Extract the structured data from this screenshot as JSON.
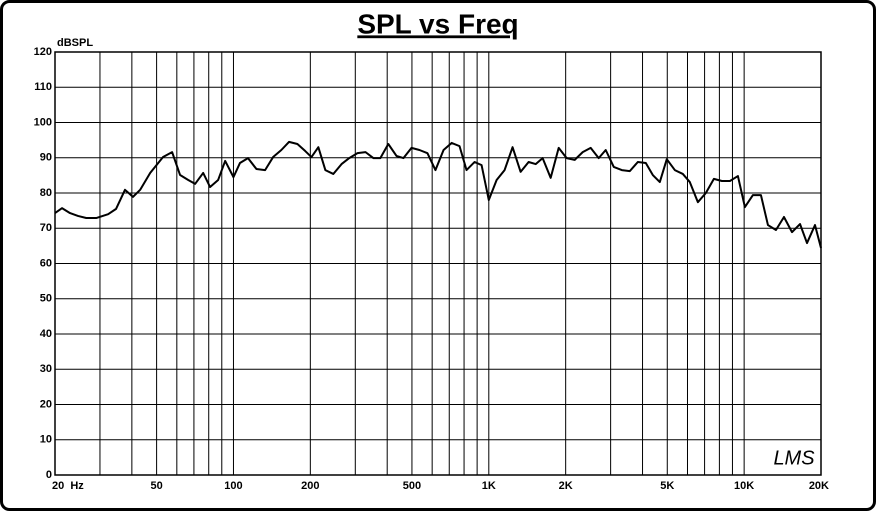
{
  "chart_data": {
    "type": "line",
    "title": "SPL vs Freq",
    "y_label": "dBSPL",
    "annotation": "LMS",
    "xscale": "log",
    "grid": true,
    "xlim": [
      20,
      20000
    ],
    "ylim": [
      0,
      120
    ],
    "yticks": [
      0,
      10,
      20,
      30,
      40,
      50,
      60,
      70,
      80,
      90,
      100,
      110,
      120
    ],
    "xticks": [
      {
        "value": 20,
        "label": "20  Hz"
      },
      50,
      100,
      200,
      500,
      {
        "value": 1000,
        "label": "1K"
      },
      {
        "value": 2000,
        "label": "2K"
      },
      {
        "value": 5000,
        "label": "5K"
      },
      {
        "value": 10000,
        "label": "10K"
      },
      {
        "value": 20000,
        "label": "20K"
      }
    ],
    "xminorticks": [
      30,
      40,
      60,
      70,
      80,
      90,
      300,
      400,
      600,
      700,
      800,
      900,
      3000,
      4000,
      6000,
      7000,
      8000,
      9000
    ],
    "x": [
      20,
      21.3,
      22.9,
      24.6,
      26.5,
      29,
      32.3,
      34.7,
      37.6,
      40.4,
      43.1,
      47.2,
      53,
      57.5,
      61.8,
      66.5,
      70.8,
      76.1,
      81,
      87.1,
      92.8,
      100,
      106,
      114,
      123,
      133,
      143,
      154,
      165,
      178,
      191,
      202,
      215,
      229,
      246,
      265,
      284,
      306,
      329,
      353,
      376,
      404,
      435,
      463,
      498,
      535,
      575,
      618,
      665,
      715,
      768,
      818,
      880,
      937,
      1000,
      1073,
      1153,
      1239,
      1332,
      1432,
      1526,
      1625,
      1747,
      1878,
      2018,
      2170,
      2332,
      2506,
      2694,
      2870,
      3086,
      3318,
      3566,
      3834,
      4120,
      4388,
      4674,
      4978,
      5352,
      5752,
      6128,
      6588,
      7080,
      7612,
      8182,
      8794,
      9454,
      10070,
      10824,
      11636,
      12396,
      13324,
      14322,
      15396,
      16550,
      17628,
      18948,
      20000
    ],
    "series": [
      {
        "name": "SPL",
        "color": "#000000",
        "values": [
          74.3,
          75.7,
          74.3,
          73.5,
          72.9,
          72.9,
          74,
          75.5,
          80.9,
          78.9,
          80.9,
          85.7,
          90.2,
          91.6,
          85.1,
          83.7,
          82.6,
          85.7,
          81.7,
          83.7,
          89.1,
          84.5,
          88.5,
          89.9,
          86.8,
          86.5,
          90.2,
          92.2,
          94.5,
          93.9,
          91.9,
          90.2,
          93,
          86.5,
          85.4,
          88.2,
          89.9,
          91.3,
          91.6,
          89.9,
          89.9,
          93.9,
          90.5,
          89.9,
          92.8,
          92.2,
          91.3,
          86.5,
          92.2,
          94.2,
          93.3,
          86.5,
          88.8,
          87.9,
          78,
          83.7,
          86.5,
          93,
          86,
          88.8,
          88.2,
          89.9,
          84.3,
          92.8,
          89.9,
          89.4,
          91.6,
          92.8,
          89.9,
          92.2,
          87.4,
          86.5,
          86.2,
          88.8,
          88.5,
          85.1,
          83.1,
          89.6,
          86.5,
          85.4,
          83.1,
          77.4,
          80,
          84,
          83.4,
          83.4,
          84.8,
          76,
          79.4,
          79.4,
          70.9,
          69.5,
          73.2,
          68.9,
          71.2,
          65.8,
          70.9,
          64.4
        ]
      }
    ]
  }
}
